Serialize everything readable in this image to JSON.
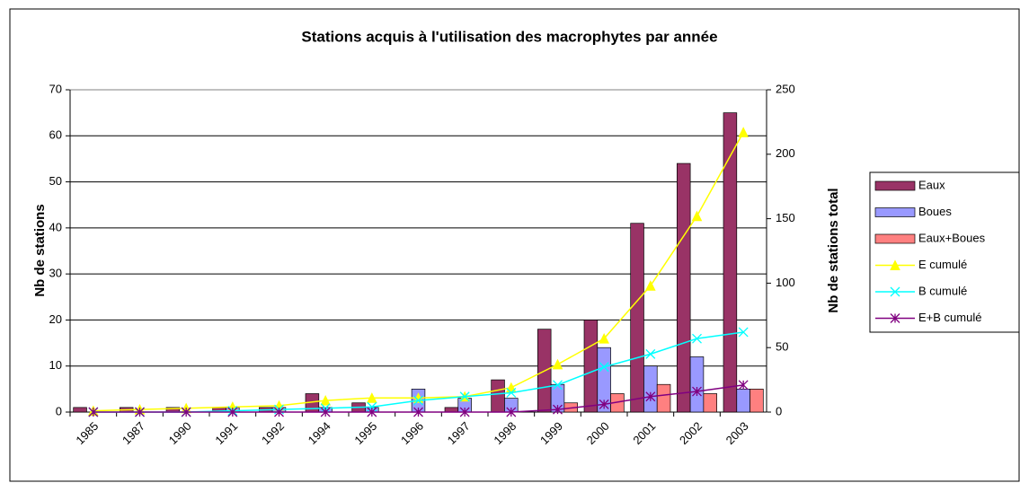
{
  "chart_data": {
    "type": "bar",
    "title": "Stations acquis à l'utilisation des macrophytes par année",
    "y_label": "Nb de stations",
    "y2_label": "Nb de stations total",
    "categories": [
      "1985",
      "1987",
      "1990",
      "1991",
      "1992",
      "1994",
      "1995",
      "1996",
      "1997",
      "1998",
      "1999",
      "2000",
      "2001",
      "2002",
      "2003"
    ],
    "series": [
      {
        "name": "Eaux",
        "color": "#993366",
        "type": "bar",
        "values": [
          1,
          1,
          1,
          1,
          1,
          4,
          2,
          0,
          1,
          7,
          18,
          20,
          41,
          54,
          65
        ]
      },
      {
        "name": "Boues",
        "color": "#9999ff",
        "type": "bar",
        "values": [
          0,
          0,
          0,
          1,
          1,
          1,
          1,
          5,
          3,
          3,
          6,
          14,
          10,
          12,
          5
        ]
      },
      {
        "name": "Eaux+Boues",
        "color": "#ff8080",
        "type": "bar",
        "values": [
          0,
          0,
          0,
          0,
          0,
          0,
          0,
          0,
          0,
          0,
          2,
          4,
          6,
          4,
          5
        ]
      },
      {
        "name": "E cumulé",
        "color": "#ffff00",
        "type": "line",
        "marker": "triangle",
        "axis": "y2",
        "values": [
          1,
          2,
          3,
          4,
          5,
          9,
          11,
          11,
          12,
          19,
          37,
          57,
          98,
          152,
          217
        ]
      },
      {
        "name": "B cumulé",
        "color": "#00ffff",
        "type": "line",
        "marker": "x",
        "axis": "y2",
        "values": [
          0,
          0,
          0,
          1,
          2,
          3,
          4,
          9,
          12,
          15,
          21,
          35,
          45,
          57,
          62
        ]
      },
      {
        "name": "E+B cumulé",
        "color": "#800080",
        "type": "line",
        "marker": "star",
        "axis": "y2",
        "values": [
          0,
          0,
          0,
          0,
          0,
          0,
          0,
          0,
          0,
          0,
          2,
          6,
          12,
          16,
          21
        ]
      }
    ],
    "ylim": [
      0,
      70
    ],
    "yticks": [
      0,
      10,
      20,
      30,
      40,
      50,
      60,
      70
    ],
    "y2lim": [
      0,
      250
    ],
    "y2ticks": [
      0,
      50,
      100,
      150,
      200,
      250
    ],
    "grid": true,
    "legend": "right"
  }
}
